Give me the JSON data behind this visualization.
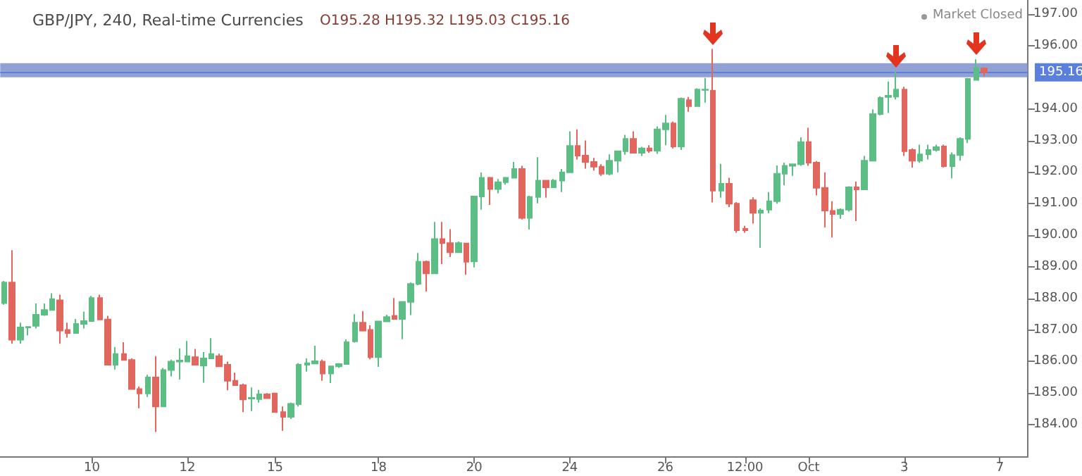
{
  "chart_data": {
    "type": "candlestick",
    "title": "GBP/JPY, 240, Real-time Currencies",
    "subtitle": "O195.28 H195.32 L195.03 C195.16",
    "annotations": [
      "Market Closed"
    ],
    "categories": [
      null,
      null,
      null,
      null,
      null,
      null,
      null,
      null,
      null,
      null,
      null,
      "10",
      null,
      null,
      null,
      null,
      null,
      null,
      null,
      null,
      null,
      null,
      null,
      "12",
      null,
      null,
      null,
      null,
      null,
      null,
      null,
      null,
      null,
      null,
      "15",
      null,
      null,
      null,
      null,
      null,
      null,
      null,
      null,
      null,
      null,
      null,
      null,
      "18",
      null,
      null,
      null,
      null,
      null,
      null,
      null,
      null,
      null,
      null,
      null,
      "20",
      null,
      null,
      null,
      null,
      null,
      null,
      null,
      null,
      null,
      null,
      null,
      "24",
      null,
      null,
      null,
      null,
      null,
      null,
      null,
      null,
      null,
      null,
      null,
      "26",
      null,
      null,
      null,
      null,
      null,
      null,
      null,
      null,
      null,
      "12:00",
      null,
      null,
      null,
      null,
      null,
      null,
      null,
      "Oct",
      null,
      null,
      null,
      null,
      null,
      null,
      null,
      null,
      null,
      null,
      null,
      "3",
      null,
      null,
      null,
      null,
      null,
      null,
      null,
      null,
      null,
      null,
      null,
      "7",
      null,
      null,
      null
    ],
    "ohlc": [
      [
        187.85,
        188.55,
        187.8,
        188.5
      ],
      [
        188.5,
        189.53,
        186.57,
        186.69
      ],
      [
        186.69,
        187.23,
        186.57,
        187.08
      ],
      [
        187.08,
        187.12,
        186.83,
        187.1
      ],
      [
        187.13,
        187.84,
        187.05,
        187.48
      ],
      [
        187.48,
        187.84,
        187.45,
        187.63
      ],
      [
        187.63,
        188.16,
        187.63,
        187.98
      ],
      [
        187.94,
        188.12,
        186.57,
        186.98
      ],
      [
        187.0,
        187.23,
        186.76,
        186.9
      ],
      [
        186.9,
        187.35,
        186.9,
        187.19
      ],
      [
        187.19,
        187.58,
        187.05,
        187.28
      ],
      [
        187.28,
        188.08,
        187.28,
        188.01
      ],
      [
        188.01,
        188.12,
        187.33,
        187.33
      ],
      [
        187.33,
        187.45,
        185.9,
        185.9
      ],
      [
        185.9,
        186.46,
        185.75,
        186.24
      ],
      [
        186.24,
        186.61,
        186.05,
        186.05
      ],
      [
        186.05,
        186.1,
        185.13,
        185.13
      ],
      [
        185.13,
        185.21,
        184.52,
        184.99
      ],
      [
        184.99,
        185.58,
        184.88,
        185.5
      ],
      [
        185.5,
        186.17,
        183.77,
        184.58
      ],
      [
        184.58,
        185.8,
        184.58,
        185.73
      ],
      [
        185.73,
        186.06,
        185.53,
        186.0
      ],
      [
        186.0,
        186.42,
        185.43,
        186.03
      ],
      [
        186.0,
        186.65,
        186.0,
        186.17
      ],
      [
        186.14,
        186.4,
        185.9,
        185.9
      ],
      [
        185.87,
        186.3,
        185.33,
        186.1
      ],
      [
        186.1,
        186.74,
        186.1,
        186.24
      ],
      [
        186.17,
        186.25,
        185.85,
        185.85
      ],
      [
        185.9,
        186.0,
        185.09,
        185.39
      ],
      [
        185.39,
        185.65,
        185.25,
        185.25
      ],
      [
        185.25,
        185.3,
        184.4,
        184.8
      ],
      [
        184.83,
        185.18,
        184.43,
        184.85
      ],
      [
        184.81,
        185.1,
        184.7,
        184.96
      ],
      [
        184.96,
        185.0,
        184.84,
        184.84
      ],
      [
        184.99,
        185.0,
        184.4,
        184.4
      ],
      [
        184.4,
        184.58,
        183.81,
        184.25
      ],
      [
        184.25,
        184.7,
        184.18,
        184.66
      ],
      [
        184.65,
        185.95,
        184.58,
        185.9
      ],
      [
        185.9,
        186.1,
        185.68,
        185.95
      ],
      [
        185.94,
        186.5,
        185.94,
        186.01
      ],
      [
        186.0,
        186.06,
        185.39,
        185.62
      ],
      [
        185.62,
        185.85,
        185.32,
        185.85
      ],
      [
        185.85,
        185.95,
        185.8,
        185.92
      ],
      [
        185.92,
        186.7,
        185.92,
        186.61
      ],
      [
        186.64,
        187.5,
        186.6,
        187.23
      ],
      [
        187.23,
        187.6,
        186.95,
        186.98
      ],
      [
        187.0,
        187.15,
        186.07,
        186.14
      ],
      [
        186.14,
        187.27,
        185.83,
        187.27
      ],
      [
        187.27,
        187.48,
        187.27,
        187.41
      ],
      [
        187.45,
        188.01,
        187.35,
        187.35
      ],
      [
        187.35,
        187.89,
        186.71,
        187.89
      ],
      [
        187.89,
        188.5,
        187.47,
        188.46
      ],
      [
        188.46,
        189.44,
        188.42,
        189.16
      ],
      [
        189.16,
        189.2,
        188.22,
        188.79
      ],
      [
        188.79,
        190.42,
        188.79,
        189.88
      ],
      [
        189.88,
        190.42,
        189.09,
        189.75
      ],
      [
        189.75,
        190.19,
        189.31,
        189.46
      ],
      [
        189.46,
        189.8,
        189.46,
        189.75
      ],
      [
        189.74,
        189.74,
        188.75,
        189.16
      ],
      [
        189.17,
        191.23,
        188.98,
        191.23
      ],
      [
        191.23,
        191.99,
        190.81,
        191.82
      ],
      [
        191.82,
        191.85,
        190.96,
        191.46
      ],
      [
        191.46,
        191.78,
        191.33,
        191.68
      ],
      [
        191.68,
        191.85,
        191.6,
        191.82
      ],
      [
        191.82,
        192.32,
        191.82,
        192.1
      ],
      [
        192.1,
        192.2,
        190.5,
        190.55
      ],
      [
        190.55,
        191.25,
        190.18,
        191.21
      ],
      [
        191.21,
        192.47,
        191.01,
        191.73
      ],
      [
        191.73,
        191.73,
        191.19,
        191.52
      ],
      [
        191.52,
        191.78,
        191.52,
        191.73
      ],
      [
        191.73,
        192.1,
        191.37,
        191.99
      ],
      [
        191.99,
        193.29,
        191.99,
        192.83
      ],
      [
        192.83,
        193.35,
        192.4,
        192.52
      ],
      [
        192.52,
        193.0,
        192.11,
        192.32
      ],
      [
        192.32,
        192.45,
        192.05,
        192.17
      ],
      [
        192.17,
        192.25,
        191.88,
        191.95
      ],
      [
        191.95,
        192.56,
        191.9,
        192.36
      ],
      [
        192.36,
        192.66,
        191.99,
        192.66
      ],
      [
        192.66,
        193.18,
        192.55,
        193.05
      ],
      [
        193.05,
        193.29,
        192.61,
        192.61
      ],
      [
        192.61,
        192.8,
        192.51,
        192.75
      ],
      [
        192.75,
        192.85,
        192.61,
        192.68
      ],
      [
        192.68,
        193.45,
        192.58,
        193.35
      ],
      [
        193.35,
        193.81,
        192.85,
        193.54
      ],
      [
        193.54,
        193.6,
        192.75,
        192.81
      ],
      [
        192.81,
        194.36,
        192.7,
        194.32
      ],
      [
        194.28,
        194.38,
        193.91,
        194.09
      ],
      [
        194.09,
        194.65,
        194.09,
        194.61
      ],
      [
        194.6,
        194.98,
        194.2,
        194.61
      ],
      [
        194.58,
        195.9,
        191.04,
        191.41
      ],
      [
        191.41,
        192.26,
        191.19,
        191.63
      ],
      [
        191.63,
        191.82,
        190.89,
        191.0
      ],
      [
        191.0,
        191.05,
        190.08,
        190.16
      ],
      [
        190.2,
        190.3,
        190.08,
        190.16
      ],
      [
        191.11,
        191.2,
        190.37,
        190.71
      ],
      [
        190.71,
        190.85,
        189.6,
        190.78
      ],
      [
        190.81,
        191.37,
        190.7,
        191.08
      ],
      [
        191.08,
        192.21,
        191.0,
        191.95
      ],
      [
        191.95,
        192.3,
        191.58,
        192.2
      ],
      [
        192.2,
        192.25,
        191.88,
        192.25
      ],
      [
        192.25,
        193.1,
        192.2,
        192.95
      ],
      [
        192.95,
        193.4,
        192.2,
        192.3
      ],
      [
        192.3,
        192.35,
        191.26,
        191.5
      ],
      [
        191.5,
        191.99,
        190.25,
        190.78
      ],
      [
        190.77,
        191.08,
        189.93,
        190.67
      ],
      [
        190.67,
        190.85,
        190.52,
        190.81
      ],
      [
        190.81,
        191.55,
        190.75,
        191.52
      ],
      [
        191.52,
        191.7,
        190.45,
        191.45
      ],
      [
        191.45,
        192.51,
        191.45,
        192.36
      ],
      [
        192.36,
        193.99,
        192.36,
        193.84
      ],
      [
        193.84,
        194.4,
        193.8,
        194.35
      ],
      [
        194.38,
        194.87,
        193.87,
        194.42
      ],
      [
        194.39,
        195.19,
        194.3,
        194.61
      ],
      [
        194.61,
        194.7,
        192.51,
        192.66
      ],
      [
        192.7,
        192.75,
        192.14,
        192.36
      ],
      [
        192.36,
        192.87,
        192.3,
        192.56
      ],
      [
        192.56,
        192.87,
        192.4,
        192.7
      ],
      [
        192.7,
        192.87,
        192.65,
        192.79
      ],
      [
        192.81,
        192.87,
        192.15,
        192.19
      ],
      [
        192.19,
        192.62,
        191.8,
        192.54
      ],
      [
        192.54,
        193.1,
        192.36,
        193.05
      ],
      [
        193.05,
        194.98,
        192.92,
        194.95
      ],
      [
        194.92,
        195.57,
        194.92,
        195.31
      ],
      [
        195.28,
        195.32,
        195.03,
        195.16
      ],
      null,
      null,
      null,
      null,
      null
    ],
    "colors": [
      "#5cbd85",
      "#e0665e",
      "#5cbd85",
      "#5cbd85",
      "#5cbd85",
      "#5cbd85",
      "#5cbd85",
      "#e0665e",
      "#e0665e",
      "#5cbd85",
      "#5cbd85",
      "#5cbd85",
      "#e0665e",
      "#e0665e",
      "#5cbd85",
      "#e0665e",
      "#e0665e",
      "#e0665e",
      "#5cbd85",
      "#e0665e",
      "#5cbd85",
      "#5cbd85",
      "#5cbd85",
      "#5cbd85",
      "#e0665e",
      "#5cbd85",
      "#5cbd85",
      "#e0665e",
      "#e0665e",
      "#e0665e",
      "#e0665e",
      "#5cbd85",
      "#5cbd85",
      "#e0665e",
      "#e0665e",
      "#e0665e",
      "#5cbd85",
      "#5cbd85",
      "#5cbd85",
      "#5cbd85",
      "#e0665e",
      "#5cbd85",
      "#5cbd85",
      "#5cbd85",
      "#5cbd85",
      "#e0665e",
      "#e0665e",
      "#5cbd85",
      "#5cbd85",
      "#e0665e",
      "#5cbd85",
      "#5cbd85",
      "#5cbd85",
      "#e0665e",
      "#5cbd85",
      "#e0665e",
      "#e0665e",
      "#5cbd85",
      "#e0665e",
      "#5cbd85",
      "#5cbd85",
      "#e0665e",
      "#5cbd85",
      "#5cbd85",
      "#5cbd85",
      "#e0665e",
      "#5cbd85",
      "#5cbd85",
      "#e0665e",
      "#5cbd85",
      "#5cbd85",
      "#5cbd85",
      "#e0665e",
      "#e0665e",
      "#e0665e",
      "#e0665e",
      "#5cbd85",
      "#5cbd85",
      "#5cbd85",
      "#e0665e",
      "#5cbd85",
      "#e0665e",
      "#5cbd85",
      "#5cbd85",
      "#e0665e",
      "#5cbd85",
      "#e0665e",
      "#5cbd85",
      "#5cbd85",
      "#e0665e",
      "#5cbd85",
      "#e0665e",
      "#e0665e",
      "#e0665e",
      "#e0665e",
      "#5cbd85",
      "#5cbd85",
      "#5cbd85",
      "#5cbd85",
      "#5cbd85",
      "#5cbd85",
      "#e0665e",
      "#e0665e",
      "#e0665e",
      "#e0665e",
      "#5cbd85",
      "#5cbd85",
      "#e0665e",
      "#5cbd85",
      "#5cbd85",
      "#5cbd85",
      "#5cbd85",
      "#5cbd85",
      "#e0665e",
      "#e0665e",
      "#5cbd85",
      "#5cbd85",
      "#5cbd85",
      "#e0665e",
      "#5cbd85",
      "#5cbd85",
      "#5cbd85",
      "#5cbd85",
      "#e0665e",
      null,
      null,
      null,
      null,
      null
    ],
    "ylim": [
      183.0,
      197.45
    ],
    "yticks": [
      {
        "value": 184,
        "label": "184.00"
      },
      {
        "value": 185,
        "label": "185.00"
      },
      {
        "value": 186,
        "label": "186.00"
      },
      {
        "value": 187,
        "label": "187.00"
      },
      {
        "value": 188,
        "label": "188.00"
      },
      {
        "value": 189,
        "label": "189.00"
      },
      {
        "value": 190,
        "label": "190.00"
      },
      {
        "value": 191,
        "label": "191.00"
      },
      {
        "value": 192,
        "label": "192.00"
      },
      {
        "value": 193,
        "label": "193.00"
      },
      {
        "value": 194,
        "label": "194.00"
      },
      {
        "value": 196,
        "label": "196.00"
      },
      {
        "value": 197,
        "label": "197.00"
      }
    ],
    "bands": [
      {
        "axis": "y",
        "from": 195.0,
        "to": 195.45,
        "color": "#7f91cb"
      }
    ],
    "ref_lines": [
      {
        "axis": "y",
        "value": 195.16,
        "label": "195.16",
        "color": "#5b7fdc"
      }
    ]
  }
}
